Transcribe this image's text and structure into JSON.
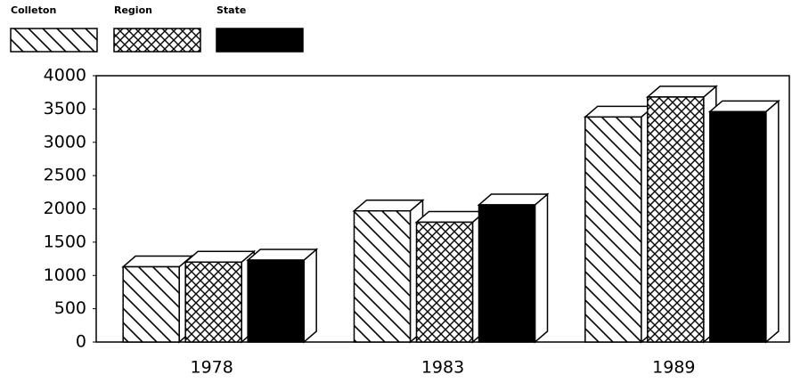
{
  "chart_data": {
    "type": "bar3d",
    "categories": [
      "1978",
      "1983",
      "1989"
    ],
    "series": [
      {
        "name": "Colleton",
        "color": "#000000",
        "pattern": "diagonal",
        "values": [
          1130,
          1970,
          3380
        ]
      },
      {
        "name": "Region",
        "color": "#000000",
        "pattern": "cross",
        "values": [
          1200,
          1800,
          3680
        ]
      },
      {
        "name": "State",
        "color": "#000000",
        "pattern": "solid",
        "values": [
          1230,
          2060,
          3460
        ]
      }
    ],
    "ylim": [
      0,
      4000
    ],
    "yticks": [
      0,
      500,
      1000,
      1500,
      2000,
      2500,
      3000,
      3500,
      4000
    ],
    "legend": "top-left"
  }
}
